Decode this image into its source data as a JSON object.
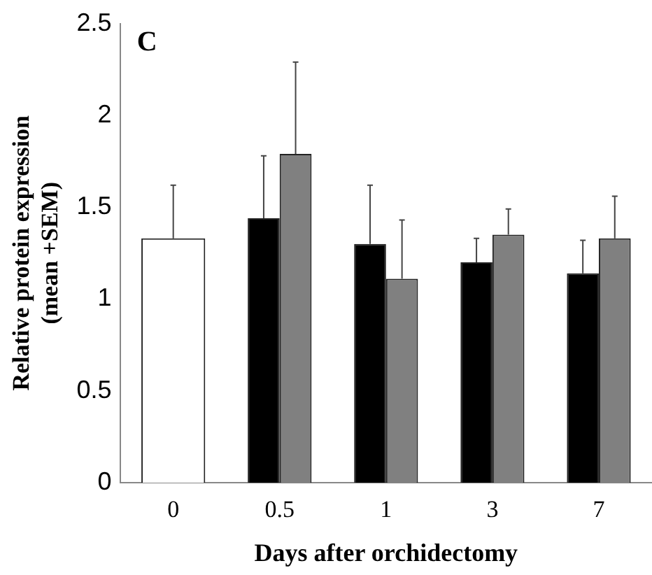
{
  "chart_data": {
    "type": "bar",
    "title": "C",
    "xlabel": "Days after orchidectomy",
    "ylabel": "Relative protein expression (mean +SEM)",
    "categories": [
      "0",
      "0.5",
      "1",
      "3",
      "7"
    ],
    "series": [
      {
        "color": "#ffffff",
        "values": [
          1.33,
          null,
          null,
          null,
          null
        ],
        "errors": [
          [
            1.33,
            1.62
          ],
          null,
          null,
          null,
          null
        ]
      },
      {
        "color": "#000000",
        "values": [
          null,
          1.44,
          1.3,
          1.2,
          1.14
        ],
        "errors": [
          null,
          [
            1.44,
            1.78
          ],
          [
            1.3,
            1.62
          ],
          [
            1.2,
            1.33
          ],
          [
            1.14,
            1.32
          ]
        ]
      },
      {
        "color": "#808080",
        "values": [
          null,
          1.79,
          1.11,
          1.35,
          1.33
        ],
        "errors": [
          null,
          [
            1.79,
            2.29
          ],
          [
            1.11,
            1.43
          ],
          [
            1.35,
            1.49
          ],
          [
            1.33,
            1.56
          ]
        ]
      }
    ],
    "ylim": [
      0,
      2.5
    ],
    "yticks": [
      0,
      0.5,
      1,
      1.5,
      2,
      2.5
    ],
    "grid": false,
    "legend": false
  }
}
